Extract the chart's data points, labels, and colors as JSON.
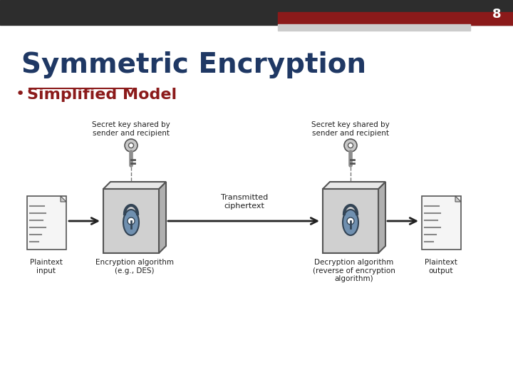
{
  "title": "Symmetric Encryption",
  "bullet": "Simplified Model",
  "slide_number": "8",
  "bg_color": "#ffffff",
  "title_color": "#1F3864",
  "bullet_color": "#8B1A1A",
  "header_bar_color": "#2d2d2d",
  "header_accent_color": "#8B1A1A",
  "slide_number_color": "#ffffff",
  "diagram": {
    "plaintext_input_label": "Plaintext\ninput",
    "plaintext_output_label": "Plaintext\noutput",
    "enc_algo_label": "Encryption algorithm\n(e.g., DES)",
    "dec_algo_label": "Decryption algorithm\n(reverse of encryption\nalgorithm)",
    "key_label_left": "Secret key shared by\nsender and recipient",
    "key_label_right": "Secret key shared by\nsender and recipient",
    "ciphertext_label": "Transmitted\nciphertext",
    "box_color": "#d0d0d0",
    "box_top_color": "#e8e8e8",
    "box_right_color": "#b0b0b0",
    "box_edge_color": "#555555",
    "doc_color": "#f5f5f5",
    "doc_fold_color": "#cccccc",
    "doc_line_color": "#888888",
    "arrow_color": "#222222",
    "lock_body_color": "#7090b0",
    "lock_edge_color": "#334455",
    "key_color": "#c8c8c8",
    "key_edge_color": "#555555",
    "dashed_line_color": "#777777"
  }
}
